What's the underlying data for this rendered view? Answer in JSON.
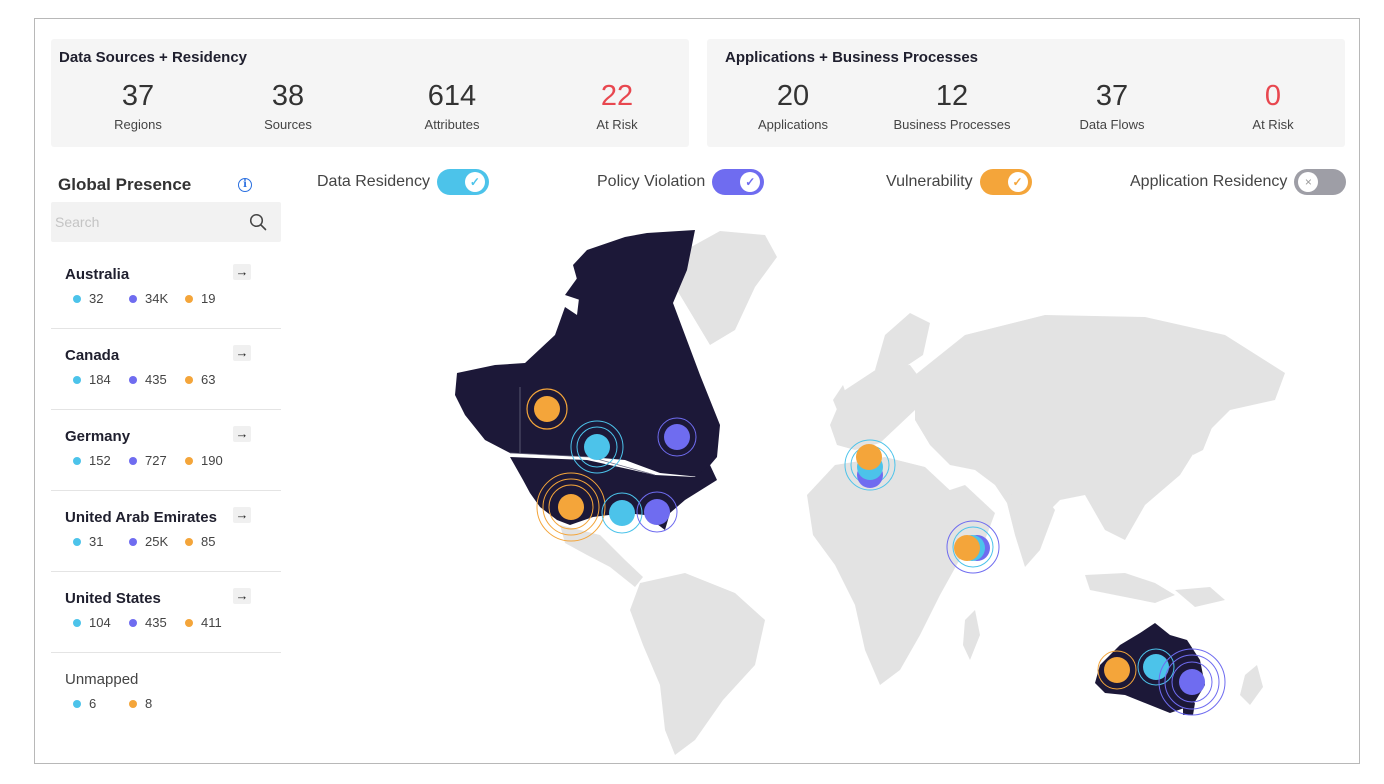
{
  "data_sources": {
    "title": "Data Sources + Residency",
    "stats": [
      {
        "value": "37",
        "label": "Regions",
        "risk": false
      },
      {
        "value": "38",
        "label": "Sources",
        "risk": false
      },
      {
        "value": "614",
        "label": "Attributes",
        "risk": false
      },
      {
        "value": "22",
        "label": "At Risk",
        "risk": true
      }
    ]
  },
  "applications": {
    "title": "Applications + Business Processes",
    "stats": [
      {
        "value": "20",
        "label": "Applications",
        "risk": false
      },
      {
        "value": "12",
        "label": "Business Processes",
        "risk": false
      },
      {
        "value": "37",
        "label": "Data Flows",
        "risk": false
      },
      {
        "value": "0",
        "label": "At Risk",
        "risk": true
      }
    ]
  },
  "sidebar": {
    "title": "Global Presence",
    "info_icon": "info-icon",
    "search_placeholder": "Search",
    "regions": [
      {
        "name": "Australia",
        "values": [
          "32",
          "34K",
          "19"
        ]
      },
      {
        "name": "Canada",
        "values": [
          "184",
          "435",
          "63"
        ]
      },
      {
        "name": "Germany",
        "values": [
          "152",
          "727",
          "190"
        ]
      },
      {
        "name": "United Arab Emirates",
        "values": [
          "31",
          "25K",
          "85"
        ]
      },
      {
        "name": "United States",
        "values": [
          "104",
          "435",
          "411"
        ]
      }
    ],
    "unmapped": {
      "name": "Unmapped",
      "values": [
        "6",
        "8"
      ]
    }
  },
  "toggles": [
    {
      "label": "Data Residency",
      "on": true,
      "color": "#4cc3ea"
    },
    {
      "label": "Policy Violation",
      "on": true,
      "color": "#6f6cf0"
    },
    {
      "label": "Vulnerability",
      "on": true,
      "color": "#f4a53a"
    },
    {
      "label": "Application Residency",
      "on": false,
      "color": "#9e9ea6"
    }
  ],
  "colors": {
    "data_residency": "#4cc3ea",
    "policy_violation": "#6f6cf0",
    "vulnerability": "#f4a53a",
    "at_risk": "#e8474f",
    "highlight_land": "#1c1838",
    "land": "#e3e3e3"
  }
}
